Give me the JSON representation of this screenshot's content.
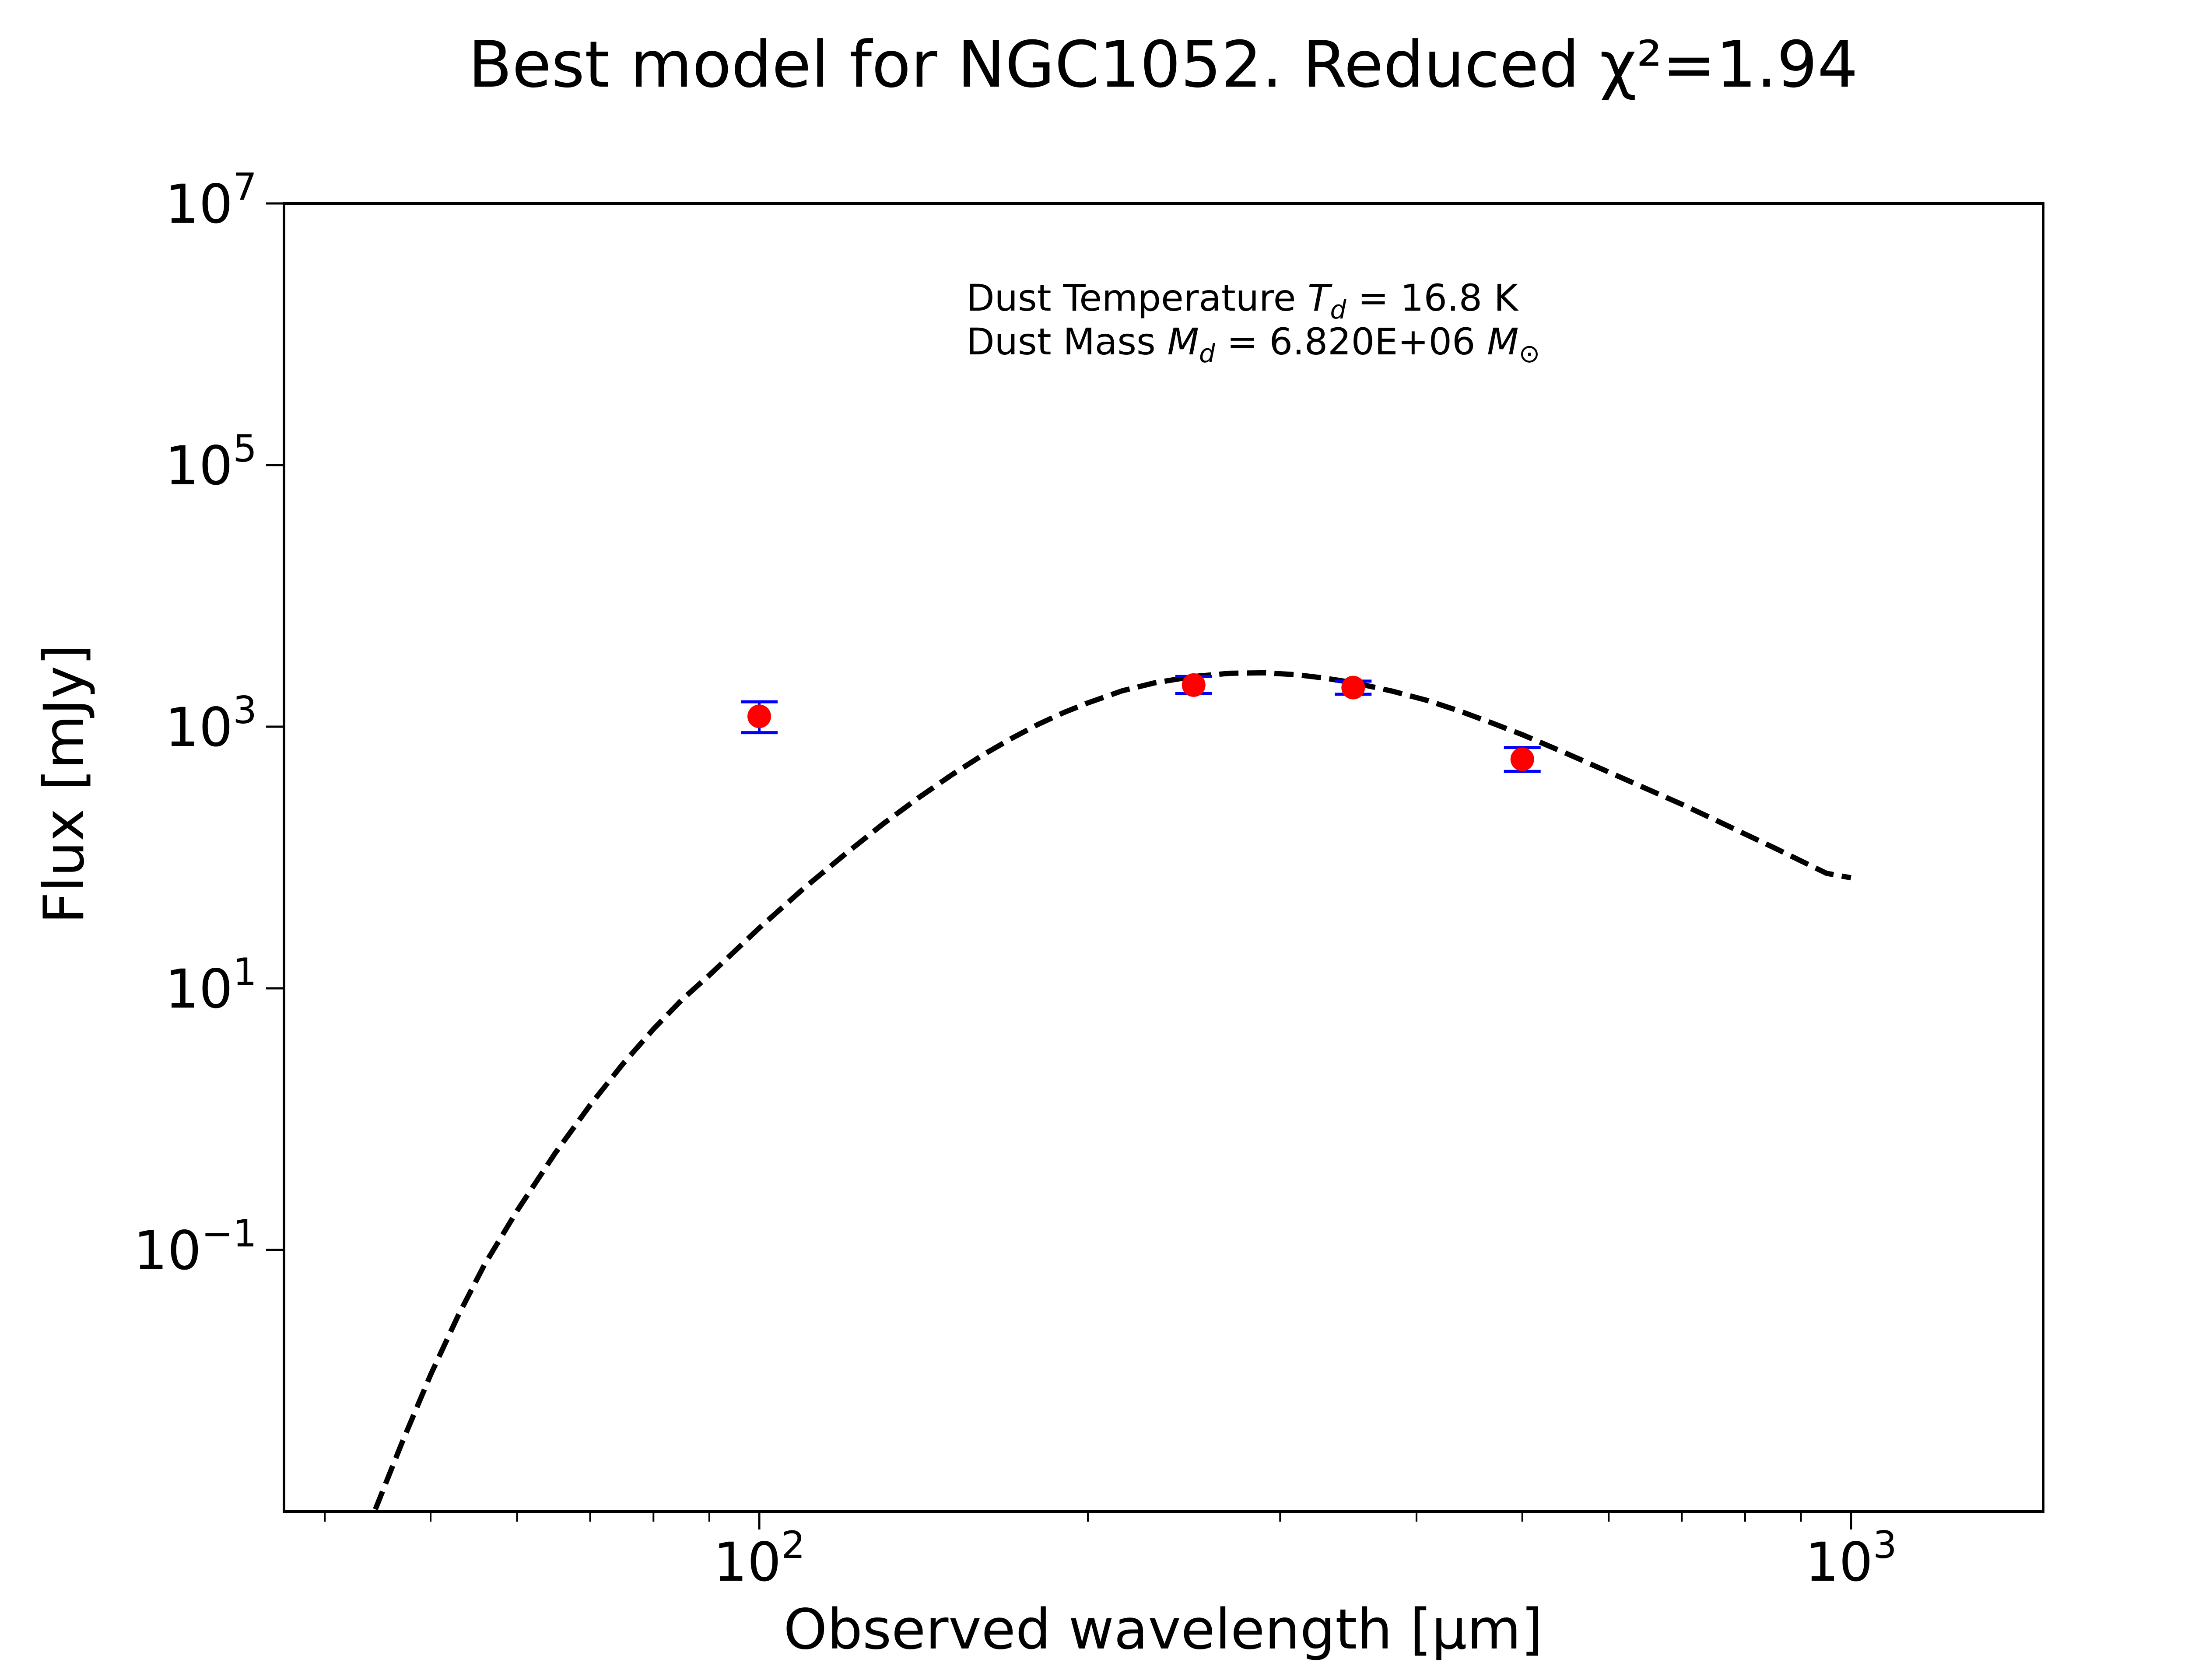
{
  "chart_data": {
    "type": "scatter",
    "title": "Best model for NGC1052. Reduced χ²=1.94",
    "xlabel": "Observed wavelength [μm]",
    "ylabel": "Flux [mJy]",
    "xscale": "log",
    "yscale": "log",
    "xlim": [
      36.7,
      1500
    ],
    "ylim": [
      0.001,
      10000000
    ],
    "grid": false,
    "x_ticks": [
      {
        "value": 100,
        "base": "10",
        "exp": "2"
      },
      {
        "value": 1000,
        "base": "10",
        "exp": "3"
      }
    ],
    "y_ticks": [
      {
        "value": 0.1,
        "base": "10",
        "exp": "−1"
      },
      {
        "value": 10,
        "base": "10",
        "exp": "1"
      },
      {
        "value": 1000,
        "base": "10",
        "exp": "3"
      },
      {
        "value": 100000,
        "base": "10",
        "exp": "5"
      },
      {
        "value": 10000000,
        "base": "10",
        "exp": "7"
      }
    ],
    "observations": {
      "marker_color": "#ff0000",
      "errorbar_color": "#0000ff",
      "points": [
        {
          "x": 100,
          "y": 1200,
          "ylo": 900,
          "yhi": 1550
        },
        {
          "x": 250,
          "y": 2080,
          "ylo": 1790,
          "yhi": 2420
        },
        {
          "x": 350,
          "y": 1990,
          "ylo": 1770,
          "yhi": 2230
        },
        {
          "x": 500,
          "y": 564,
          "ylo": 455,
          "yhi": 693
        }
      ]
    },
    "model": {
      "style": "dashed",
      "color": "#000000",
      "curve": [
        [
          44.5,
          0.00104
        ],
        [
          47,
          0.00326
        ],
        [
          50,
          0.0111
        ],
        [
          53,
          0.0316
        ],
        [
          56,
          0.0768
        ],
        [
          60,
          0.199
        ],
        [
          65,
          0.547
        ],
        [
          70,
          1.28
        ],
        [
          75,
          2.64
        ],
        [
          80,
          4.88
        ],
        [
          85,
          8.22
        ],
        [
          90,
          12.6
        ],
        [
          100,
          28.9
        ],
        [
          110,
          58.7
        ],
        [
          120,
          107
        ],
        [
          130,
          182
        ],
        [
          140,
          287
        ],
        [
          150,
          427
        ],
        [
          160,
          603
        ],
        [
          170,
          808
        ],
        [
          180,
          1040
        ],
        [
          190,
          1280
        ],
        [
          200,
          1520
        ],
        [
          215,
          1880
        ],
        [
          230,
          2160
        ],
        [
          250,
          2420
        ],
        [
          270,
          2560
        ],
        [
          290,
          2580
        ],
        [
          310,
          2500
        ],
        [
          330,
          2350
        ],
        [
          350,
          2170
        ],
        [
          380,
          1870
        ],
        [
          410,
          1580
        ],
        [
          440,
          1300
        ],
        [
          470,
          1060
        ],
        [
          500,
          869
        ],
        [
          550,
          620
        ],
        [
          600,
          450
        ],
        [
          650,
          335
        ],
        [
          700,
          255
        ],
        [
          750,
          195
        ],
        [
          800,
          151
        ],
        [
          850,
          119
        ],
        [
          900,
          94.2
        ],
        [
          950,
          75.7
        ],
        [
          1000,
          70
        ]
      ]
    },
    "annotations": [
      {
        "prefix": "Dust Temperature ",
        "symbol": "T",
        "sub": "d",
        "value": " = 16.8 K"
      },
      {
        "prefix": "Dust Mass ",
        "symbol": "M",
        "sub": "d",
        "value": " = 6.820E+06 ",
        "unit_symbol": "M",
        "unit_sub": "⊙"
      }
    ]
  }
}
